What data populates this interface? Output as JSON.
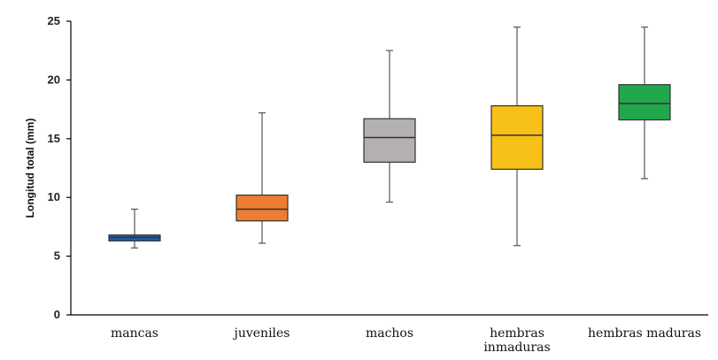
{
  "chart_data": {
    "type": "boxplot",
    "title": "",
    "xlabel": "",
    "ylabel": "Longitud total (mm)",
    "ylim": [
      0,
      25
    ],
    "yticks": [
      0,
      5,
      10,
      15,
      20,
      25
    ],
    "grid": false,
    "legend": "none",
    "series": [
      {
        "category": [
          "mancas"
        ],
        "min": 5.7,
        "q1": 6.3,
        "median": 6.6,
        "q3": 6.8,
        "max": 9.0,
        "color": "#1f5fa8"
      },
      {
        "category": [
          "juveniles"
        ],
        "min": 6.1,
        "q1": 8.0,
        "median": 9.0,
        "q3": 10.2,
        "max": 17.2,
        "color": "#ed7d31"
      },
      {
        "category": [
          "machos"
        ],
        "min": 9.6,
        "q1": 13.0,
        "median": 15.1,
        "q3": 16.7,
        "max": 22.5,
        "color": "#b4b0b0"
      },
      {
        "category": [
          "hembras",
          "inmaduras"
        ],
        "min": 5.9,
        "q1": 12.4,
        "median": 15.3,
        "q3": 17.8,
        "max": 24.5,
        "color": "#f8c118"
      },
      {
        "category": [
          "hembras maduras"
        ],
        "min": 11.6,
        "q1": 16.6,
        "median": 18.0,
        "q3": 19.6,
        "max": 24.5,
        "color": "#23a74d"
      }
    ]
  }
}
